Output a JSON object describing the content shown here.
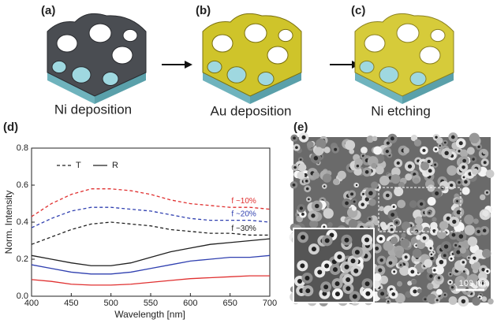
{
  "figure": {
    "panels": [
      {
        "label": "(a)",
        "caption": "Ni deposition"
      },
      {
        "label": "(b)",
        "caption": "Au deposition"
      },
      {
        "label": "(c)",
        "caption": "Ni etching"
      }
    ],
    "sem": {
      "label": "(e)",
      "scale_bar": "100 nm"
    }
  },
  "chart_data": {
    "type": "line",
    "panel_label": "(d)",
    "xlabel": "Wavelength [nm]",
    "ylabel": "Norm. Intensity",
    "xlim": [
      400,
      700
    ],
    "ylim": [
      0,
      0.8
    ],
    "xticks": [
      400,
      450,
      500,
      550,
      600,
      650,
      700
    ],
    "yticks": [
      {
        "value": 0,
        "label": "0.0"
      },
      {
        "value": 0.2,
        "label": "0.2"
      },
      {
        "value": 0.4,
        "label": "0.4"
      },
      {
        "value": 0.6,
        "label": "0.6"
      },
      {
        "value": 0.8,
        "label": "0.8"
      }
    ],
    "legend_position": "upper left",
    "legend": [
      {
        "label": "T",
        "dash": true
      },
      {
        "label": "R",
        "dash": false
      }
    ],
    "x": [
      400,
      425,
      450,
      475,
      500,
      525,
      550,
      575,
      600,
      625,
      650,
      675,
      700
    ],
    "series": [
      {
        "label": "f ~10%",
        "color": "#e03030",
        "dash": true,
        "values": [
          0.43,
          0.5,
          0.55,
          0.58,
          0.58,
          0.57,
          0.55,
          0.52,
          0.5,
          0.49,
          0.48,
          0.48,
          0.47
        ]
      },
      {
        "label": "f ~20%",
        "color": "#3040b0",
        "dash": true,
        "values": [
          0.37,
          0.42,
          0.46,
          0.48,
          0.48,
          0.47,
          0.46,
          0.44,
          0.42,
          0.41,
          0.41,
          0.41,
          0.4
        ]
      },
      {
        "label": "f ~30%",
        "color": "#202020",
        "dash": true,
        "values": [
          0.28,
          0.32,
          0.36,
          0.39,
          0.4,
          0.39,
          0.38,
          0.36,
          0.35,
          0.34,
          0.34,
          0.33,
          0.33
        ]
      },
      {
        "color": "#202020",
        "dash": false,
        "values": [
          0.22,
          0.2,
          0.18,
          0.165,
          0.165,
          0.18,
          0.21,
          0.24,
          0.26,
          0.28,
          0.29,
          0.3,
          0.31
        ]
      },
      {
        "color": "#3040b0",
        "dash": false,
        "values": [
          0.17,
          0.15,
          0.13,
          0.12,
          0.12,
          0.13,
          0.15,
          0.17,
          0.19,
          0.2,
          0.21,
          0.21,
          0.22
        ]
      },
      {
        "color": "#e03030",
        "dash": false,
        "values": [
          0.09,
          0.08,
          0.065,
          0.06,
          0.06,
          0.065,
          0.075,
          0.085,
          0.095,
          0.1,
          0.105,
          0.11,
          0.11
        ]
      }
    ]
  }
}
